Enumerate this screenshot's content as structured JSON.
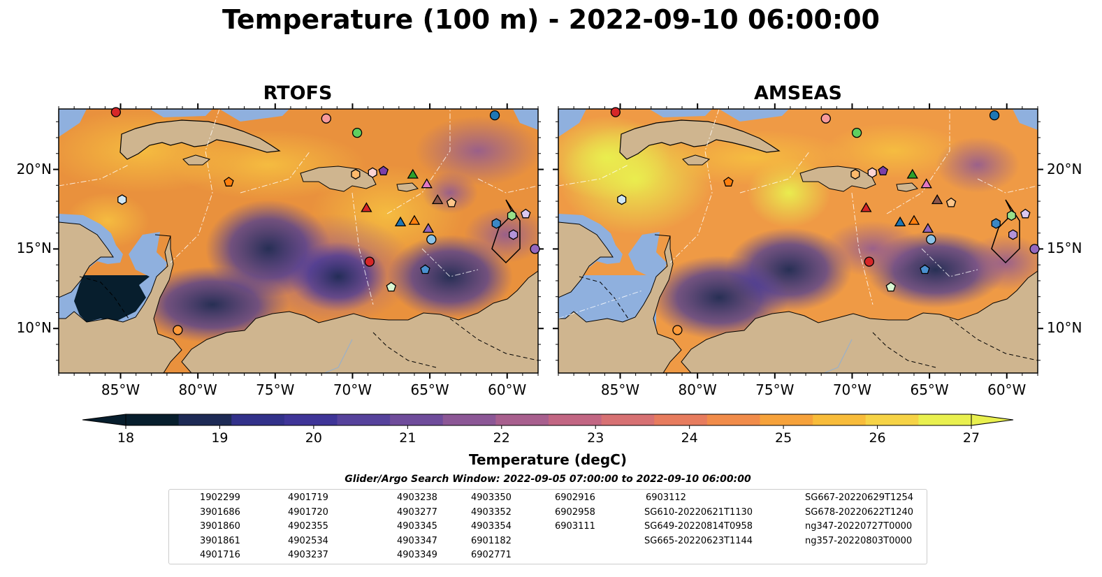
{
  "title": "Temperature (100 m) - 2022-09-10 06:00:00",
  "panels": [
    {
      "id": "rtofs",
      "title": "RTOFS"
    },
    {
      "id": "amseas",
      "title": "AMSEAS"
    }
  ],
  "axes": {
    "lon_ticks": [
      "85°W",
      "80°W",
      "75°W",
      "70°W",
      "65°W",
      "60°W"
    ],
    "lat_ticks": [
      "20°N",
      "15°N",
      "10°N"
    ]
  },
  "colorbar": {
    "label": "Temperature (degC)",
    "ticks": [
      "18",
      "19",
      "20",
      "21",
      "22",
      "23",
      "24",
      "25",
      "26",
      "27"
    ],
    "min": 18,
    "max": 27,
    "extend": "both",
    "colors": [
      "#071e2d",
      "#1d2a55",
      "#32318a",
      "#3f3598",
      "#56429c",
      "#6f4c9b",
      "#8c5796",
      "#a85f8e",
      "#c26683",
      "#d77173",
      "#e77c5e",
      "#f18c4a",
      "#f6a23b",
      "#f8bc3a",
      "#f6d346",
      "#e9f04f"
    ]
  },
  "search_window": "Glider/Argo Search Window: 2022-09-05 07:00:00 to 2022-09-10 06:00:00",
  "legend": [
    {
      "label": "1902299",
      "marker": "circle",
      "color": "#1f77b4"
    },
    {
      "label": "3901686",
      "marker": "hexagon",
      "color": "#3b87c4"
    },
    {
      "label": "3901860",
      "marker": "pentagon",
      "color": "#4a90d0"
    },
    {
      "label": "3901861",
      "marker": "circle",
      "color": "#8cc2e6"
    },
    {
      "label": "4901716",
      "marker": "hexagon",
      "color": "#cfe6f5"
    },
    {
      "label": "4901719",
      "marker": "pentagon",
      "color": "#ff7f0e"
    },
    {
      "label": "4901720",
      "marker": "circle",
      "color": "#fd9a3a"
    },
    {
      "label": "4902355",
      "marker": "hexagon",
      "color": "#fdb96b"
    },
    {
      "label": "4902534",
      "marker": "pentagon",
      "color": "#fdc68a"
    },
    {
      "label": "4903237",
      "marker": "circle",
      "color": "#fde3c2"
    },
    {
      "label": "4903238",
      "marker": "hexagon",
      "color": "#1a7a1a"
    },
    {
      "label": "4903277",
      "marker": "pentagon",
      "color": "#2ca02c"
    },
    {
      "label": "4903345",
      "marker": "circle",
      "color": "#5fcf5f"
    },
    {
      "label": "4903347",
      "marker": "hexagon",
      "color": "#98df8a"
    },
    {
      "label": "4903349",
      "marker": "pentagon",
      "color": "#d9f7d2"
    },
    {
      "label": "4903350",
      "marker": "circle",
      "color": "#d62728"
    },
    {
      "label": "4903352",
      "marker": "hexagon",
      "color": "#e34a4b"
    },
    {
      "label": "4903354",
      "marker": "pentagon",
      "color": "#f07070"
    },
    {
      "label": "6901182",
      "marker": "circle",
      "color": "#f79a9a"
    },
    {
      "label": "6902771",
      "marker": "hexagon",
      "color": "#fcd3d3"
    },
    {
      "label": "6902916",
      "marker": "pentagon",
      "color": "#7b3fa8"
    },
    {
      "label": "6902958",
      "marker": "circle",
      "color": "#9467bd"
    },
    {
      "label": "6903111",
      "marker": "hexagon",
      "color": "#b394d8"
    },
    {
      "label": "6903112",
      "marker": "pentagon",
      "color": "#dac8f0"
    },
    {
      "label": "SG610-20220621T1130",
      "marker": "triangle",
      "color": "#1f77b4",
      "line": true
    },
    {
      "label": "SG649-20220814T0958",
      "marker": "triangle",
      "color": "#ff7f0e",
      "line": true
    },
    {
      "label": "SG665-20220623T1144",
      "marker": "triangle",
      "color": "#2ca02c",
      "line": true
    },
    {
      "label": "SG667-20220629T1254",
      "marker": "triangle",
      "color": "#d62728",
      "line": true
    },
    {
      "label": "SG678-20220622T1240",
      "marker": "triangle",
      "color": "#9467bd",
      "line": true
    },
    {
      "label": "ng347-20220727T0000",
      "marker": "triangle",
      "color": "#8c564b",
      "line": true
    },
    {
      "label": "ng357-20220803T0000",
      "marker": "triangle",
      "color": "#e377c2",
      "line": true
    }
  ],
  "platforms": [
    {
      "lon": -60.8,
      "lat": 23.4,
      "marker": "circle",
      "color": "#1f77b4"
    },
    {
      "lon": -85.3,
      "lat": 23.6,
      "marker": "circle",
      "color": "#d62728"
    },
    {
      "lon": -71.7,
      "lat": 23.2,
      "marker": "circle",
      "color": "#f79a9a"
    },
    {
      "lon": -69.7,
      "lat": 22.3,
      "marker": "circle",
      "color": "#5fcf5f"
    },
    {
      "lon": -84.9,
      "lat": 18.1,
      "marker": "hexagon",
      "color": "#cfe6f5"
    },
    {
      "lon": -78.0,
      "lat": 19.2,
      "marker": "pentagon",
      "color": "#ff7f0e"
    },
    {
      "lon": -69.8,
      "lat": 19.7,
      "marker": "hexagon",
      "color": "#fdb96b"
    },
    {
      "lon": -68.7,
      "lat": 19.8,
      "marker": "hexagon",
      "color": "#fcd3d3"
    },
    {
      "lon": -68.0,
      "lat": 19.9,
      "marker": "pentagon",
      "color": "#7b3fa8"
    },
    {
      "lon": -66.1,
      "lat": 19.7,
      "marker": "triangle",
      "color": "#2ca02c"
    },
    {
      "lon": -65.2,
      "lat": 19.1,
      "marker": "triangle",
      "color": "#e377c2"
    },
    {
      "lon": -64.5,
      "lat": 18.1,
      "marker": "triangle",
      "color": "#8c564b"
    },
    {
      "lon": -63.6,
      "lat": 17.9,
      "marker": "pentagon",
      "color": "#fdc68a"
    },
    {
      "lon": -69.1,
      "lat": 17.6,
      "marker": "triangle",
      "color": "#d62728"
    },
    {
      "lon": -66.9,
      "lat": 16.7,
      "marker": "triangle",
      "color": "#1f77b4"
    },
    {
      "lon": -66.0,
      "lat": 16.8,
      "marker": "triangle",
      "color": "#ff7f0e"
    },
    {
      "lon": -65.1,
      "lat": 16.3,
      "marker": "triangle",
      "color": "#9467bd"
    },
    {
      "lon": -64.9,
      "lat": 15.6,
      "marker": "circle",
      "color": "#8cc2e6"
    },
    {
      "lon": -60.7,
      "lat": 16.6,
      "marker": "hexagon",
      "color": "#3b87c4"
    },
    {
      "lon": -59.7,
      "lat": 17.1,
      "marker": "hexagon",
      "color": "#98df8a"
    },
    {
      "lon": -58.8,
      "lat": 17.2,
      "marker": "pentagon",
      "color": "#dac8f0"
    },
    {
      "lon": -59.6,
      "lat": 15.9,
      "marker": "hexagon",
      "color": "#b394d8"
    },
    {
      "lon": -58.2,
      "lat": 15.0,
      "marker": "circle",
      "color": "#9467bd"
    },
    {
      "lon": -68.9,
      "lat": 14.2,
      "marker": "circle",
      "color": "#d62728"
    },
    {
      "lon": -65.3,
      "lat": 13.7,
      "marker": "pentagon",
      "color": "#4a90d0"
    },
    {
      "lon": -67.5,
      "lat": 12.6,
      "marker": "pentagon",
      "color": "#d9f7d2"
    },
    {
      "lon": -81.3,
      "lat": 9.9,
      "marker": "circle",
      "color": "#fd9a3a"
    }
  ]
}
